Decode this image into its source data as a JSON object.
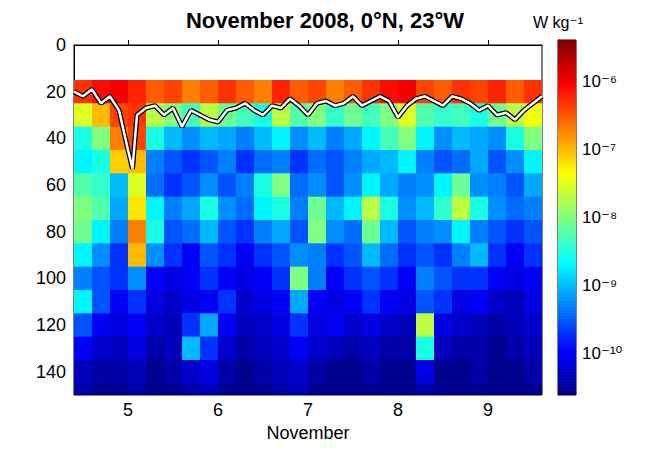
{
  "chart_data": {
    "type": "heatmap",
    "title": "November 2008, 0°N, 23°W",
    "x_label": "November",
    "xlim": [
      4.4,
      9.6
    ],
    "xticks": [
      5,
      6,
      7,
      8,
      9
    ],
    "ylim": [
      0,
      150
    ],
    "yticks": [
      0,
      20,
      40,
      60,
      80,
      100,
      120,
      140
    ],
    "cells": {
      "x": [
        4.5,
        4.7,
        4.9,
        5.1,
        5.3,
        5.5,
        5.7,
        5.9,
        6.1,
        6.3,
        6.5,
        6.7,
        6.9,
        7.1,
        7.3,
        7.5,
        7.7,
        7.9,
        8.1,
        8.3,
        8.5,
        8.7,
        8.9,
        9.1,
        9.3,
        9.5
      ],
      "depth": [
        20,
        30,
        40,
        50,
        60,
        70,
        80,
        90,
        100,
        110,
        120,
        130,
        140,
        150
      ],
      "epsilon": [
        [
          5e-07,
          8e-07,
          1e-06,
          6e-07,
          3e-07,
          4e-07,
          2e-07,
          3e-07,
          5e-07,
          3e-07,
          2e-07,
          6e-07,
          3e-07,
          4e-07,
          2e-07,
          3e-07,
          5e-07,
          8e-07,
          1e-06,
          4e-07,
          3e-07,
          5e-07,
          4e-07,
          6e-07,
          3e-07,
          5e-07
        ],
        [
          3e-08,
          1e-07,
          4e-07,
          5e-07,
          2e-08,
          1e-08,
          5e-09,
          2e-08,
          8e-09,
          5e-09,
          3e-09,
          2e-08,
          6e-09,
          1e-08,
          4e-09,
          8e-09,
          5e-09,
          1e-08,
          3e-08,
          6e-09,
          4e-09,
          5e-09,
          3e-09,
          8e-09,
          2e-08,
          4e-08
        ],
        [
          3e-09,
          1e-08,
          2e-07,
          4e-07,
          3e-09,
          1e-09,
          6e-10,
          1e-09,
          8e-10,
          5e-10,
          1e-09,
          2e-09,
          6e-10,
          1e-09,
          5e-10,
          8e-10,
          2e-09,
          5e-09,
          1e-08,
          2e-09,
          6e-10,
          1e-09,
          8e-10,
          6e-10,
          3e-09,
          1e-08
        ],
        [
          2e-09,
          3e-09,
          8e-08,
          1e-07,
          5e-10,
          3e-10,
          2e-10,
          3e-10,
          5e-10,
          2e-10,
          4e-10,
          5e-10,
          2e-10,
          4e-10,
          3e-10,
          5e-10,
          8e-10,
          1e-09,
          2e-09,
          5e-10,
          3e-10,
          4e-10,
          8e-10,
          3e-10,
          6e-10,
          2e-09
        ],
        [
          6e-09,
          4e-09,
          1e-09,
          3e-08,
          4e-10,
          2e-10,
          3e-10,
          6e-10,
          3e-10,
          5e-10,
          3e-09,
          1e-08,
          4e-10,
          6e-10,
          3e-10,
          6e-10,
          2e-09,
          8e-10,
          5e-10,
          6e-10,
          2e-09,
          8e-09,
          6e-10,
          5e-10,
          3e-10,
          8e-10
        ],
        [
          1e-08,
          6e-09,
          8e-10,
          6e-08,
          2e-09,
          5e-10,
          8e-10,
          3e-09,
          6e-10,
          4e-10,
          2e-09,
          3e-09,
          5e-10,
          8e-09,
          1e-09,
          2e-09,
          2e-08,
          3e-09,
          6e-10,
          1e-09,
          4e-09,
          2e-08,
          3e-09,
          6e-10,
          4e-10,
          5e-10
        ],
        [
          8e-09,
          2e-09,
          5e-10,
          2e-07,
          3e-09,
          3e-10,
          4e-10,
          1e-09,
          3e-10,
          2e-10,
          5e-10,
          8e-10,
          3e-10,
          1e-08,
          6e-10,
          4e-10,
          8e-09,
          1e-09,
          3e-10,
          5e-10,
          6e-10,
          2e-09,
          5e-10,
          3e-10,
          2e-10,
          3e-10
        ],
        [
          2e-09,
          6e-10,
          2e-10,
          1e-07,
          6e-10,
          2e-10,
          1e-10,
          3e-10,
          2e-10,
          1e-10,
          2e-10,
          3e-10,
          6e-10,
          5e-10,
          2e-10,
          3e-10,
          1e-09,
          4e-10,
          2e-10,
          3e-10,
          2e-10,
          5e-10,
          1e-09,
          2e-10,
          1e-10,
          2e-10
        ],
        [
          5e-10,
          3e-10,
          2e-10,
          6e-10,
          1e-10,
          8e-11,
          1e-10,
          2e-10,
          1e-10,
          8e-11,
          1e-10,
          2e-10,
          1e-08,
          5e-10,
          1e-10,
          2e-10,
          3e-10,
          2e-10,
          1e-10,
          5e-10,
          3e-10,
          2e-10,
          2e-10,
          1e-10,
          8e-11,
          1e-10
        ],
        [
          2e-09,
          3e-10,
          1e-10,
          2e-10,
          8e-11,
          6e-11,
          8e-11,
          1e-10,
          2e-10,
          6e-11,
          8e-11,
          1e-10,
          8e-10,
          1e-10,
          8e-11,
          1e-10,
          2e-10,
          1e-10,
          8e-11,
          3e-10,
          2e-10,
          8e-11,
          1e-10,
          6e-11,
          5e-11,
          8e-11
        ],
        [
          3e-10,
          1e-10,
          8e-11,
          1e-10,
          6e-11,
          5e-11,
          2e-10,
          8e-10,
          1e-10,
          5e-11,
          6e-11,
          8e-11,
          2e-10,
          8e-11,
          1e-10,
          6e-11,
          8e-11,
          6e-11,
          5e-11,
          2e-08,
          8e-11,
          6e-11,
          5e-11,
          4e-11,
          5e-11,
          6e-11
        ],
        [
          1e-10,
          6e-11,
          5e-11,
          8e-11,
          4e-11,
          5e-11,
          1e-09,
          2e-10,
          6e-11,
          4e-11,
          5e-11,
          6e-11,
          1e-10,
          6e-11,
          5e-11,
          4e-11,
          5e-11,
          4e-11,
          4e-11,
          3e-09,
          5e-11,
          4e-11,
          4e-11,
          3e-11,
          4e-11,
          5e-11
        ],
        [
          5e-11,
          4e-11,
          4e-11,
          5e-11,
          3e-11,
          4e-11,
          6e-11,
          8e-11,
          4e-11,
          3e-11,
          4e-11,
          5e-11,
          6e-11,
          4e-11,
          3e-11,
          3e-11,
          4e-11,
          3e-11,
          3e-11,
          8e-11,
          3e-11,
          3e-11,
          4e-11,
          3e-11,
          3e-11,
          4e-11
        ],
        [
          4e-11,
          3e-11,
          3e-11,
          4e-11,
          3e-11,
          3e-11,
          4e-11,
          5e-11,
          3e-11,
          3e-11,
          3e-11,
          4e-11,
          5e-11,
          3e-11,
          3e-11,
          3e-11,
          3e-11,
          3e-11,
          3e-11,
          4e-11,
          3e-11,
          3e-11,
          3e-11,
          3e-11,
          3e-11,
          3e-11
        ]
      ]
    },
    "colorbar": {
      "label": "W kg⁻¹",
      "log": true,
      "range": [
        2.5e-11,
        4e-06
      ],
      "ticks": [
        {
          "value": 1e-10,
          "label": "10⁻¹⁰"
        },
        {
          "value": 1e-09,
          "label": "10⁻⁹"
        },
        {
          "value": 1e-08,
          "label": "10⁻⁸"
        },
        {
          "value": 1e-07,
          "label": "10⁻⁷"
        },
        {
          "value": 1e-06,
          "label": "10⁻⁶"
        }
      ]
    },
    "line": {
      "color": "#ffffff",
      "x": [
        4.4,
        4.5,
        4.6,
        4.7,
        4.8,
        4.9,
        5.0,
        5.05,
        5.1,
        5.2,
        5.3,
        5.4,
        5.5,
        5.6,
        5.7,
        5.8,
        5.9,
        6.0,
        6.1,
        6.2,
        6.3,
        6.4,
        6.5,
        6.6,
        6.7,
        6.8,
        6.9,
        7.0,
        7.1,
        7.2,
        7.3,
        7.4,
        7.5,
        7.6,
        7.7,
        7.8,
        7.9,
        8.0,
        8.1,
        8.2,
        8.3,
        8.4,
        8.5,
        8.6,
        8.7,
        8.8,
        8.9,
        9.0,
        9.1,
        9.2,
        9.3,
        9.4,
        9.5,
        9.6
      ],
      "values": [
        20,
        22,
        19,
        25,
        22,
        28,
        45,
        53,
        30,
        27,
        26,
        30,
        27,
        35,
        28,
        30,
        32,
        33,
        28,
        27,
        25,
        28,
        30,
        26,
        27,
        23,
        26,
        30,
        25,
        24,
        26,
        25,
        22,
        26,
        24,
        22,
        24,
        31,
        26,
        23,
        22,
        24,
        26,
        22,
        23,
        25,
        28,
        26,
        30,
        29,
        32,
        28,
        25,
        22
      ]
    }
  }
}
